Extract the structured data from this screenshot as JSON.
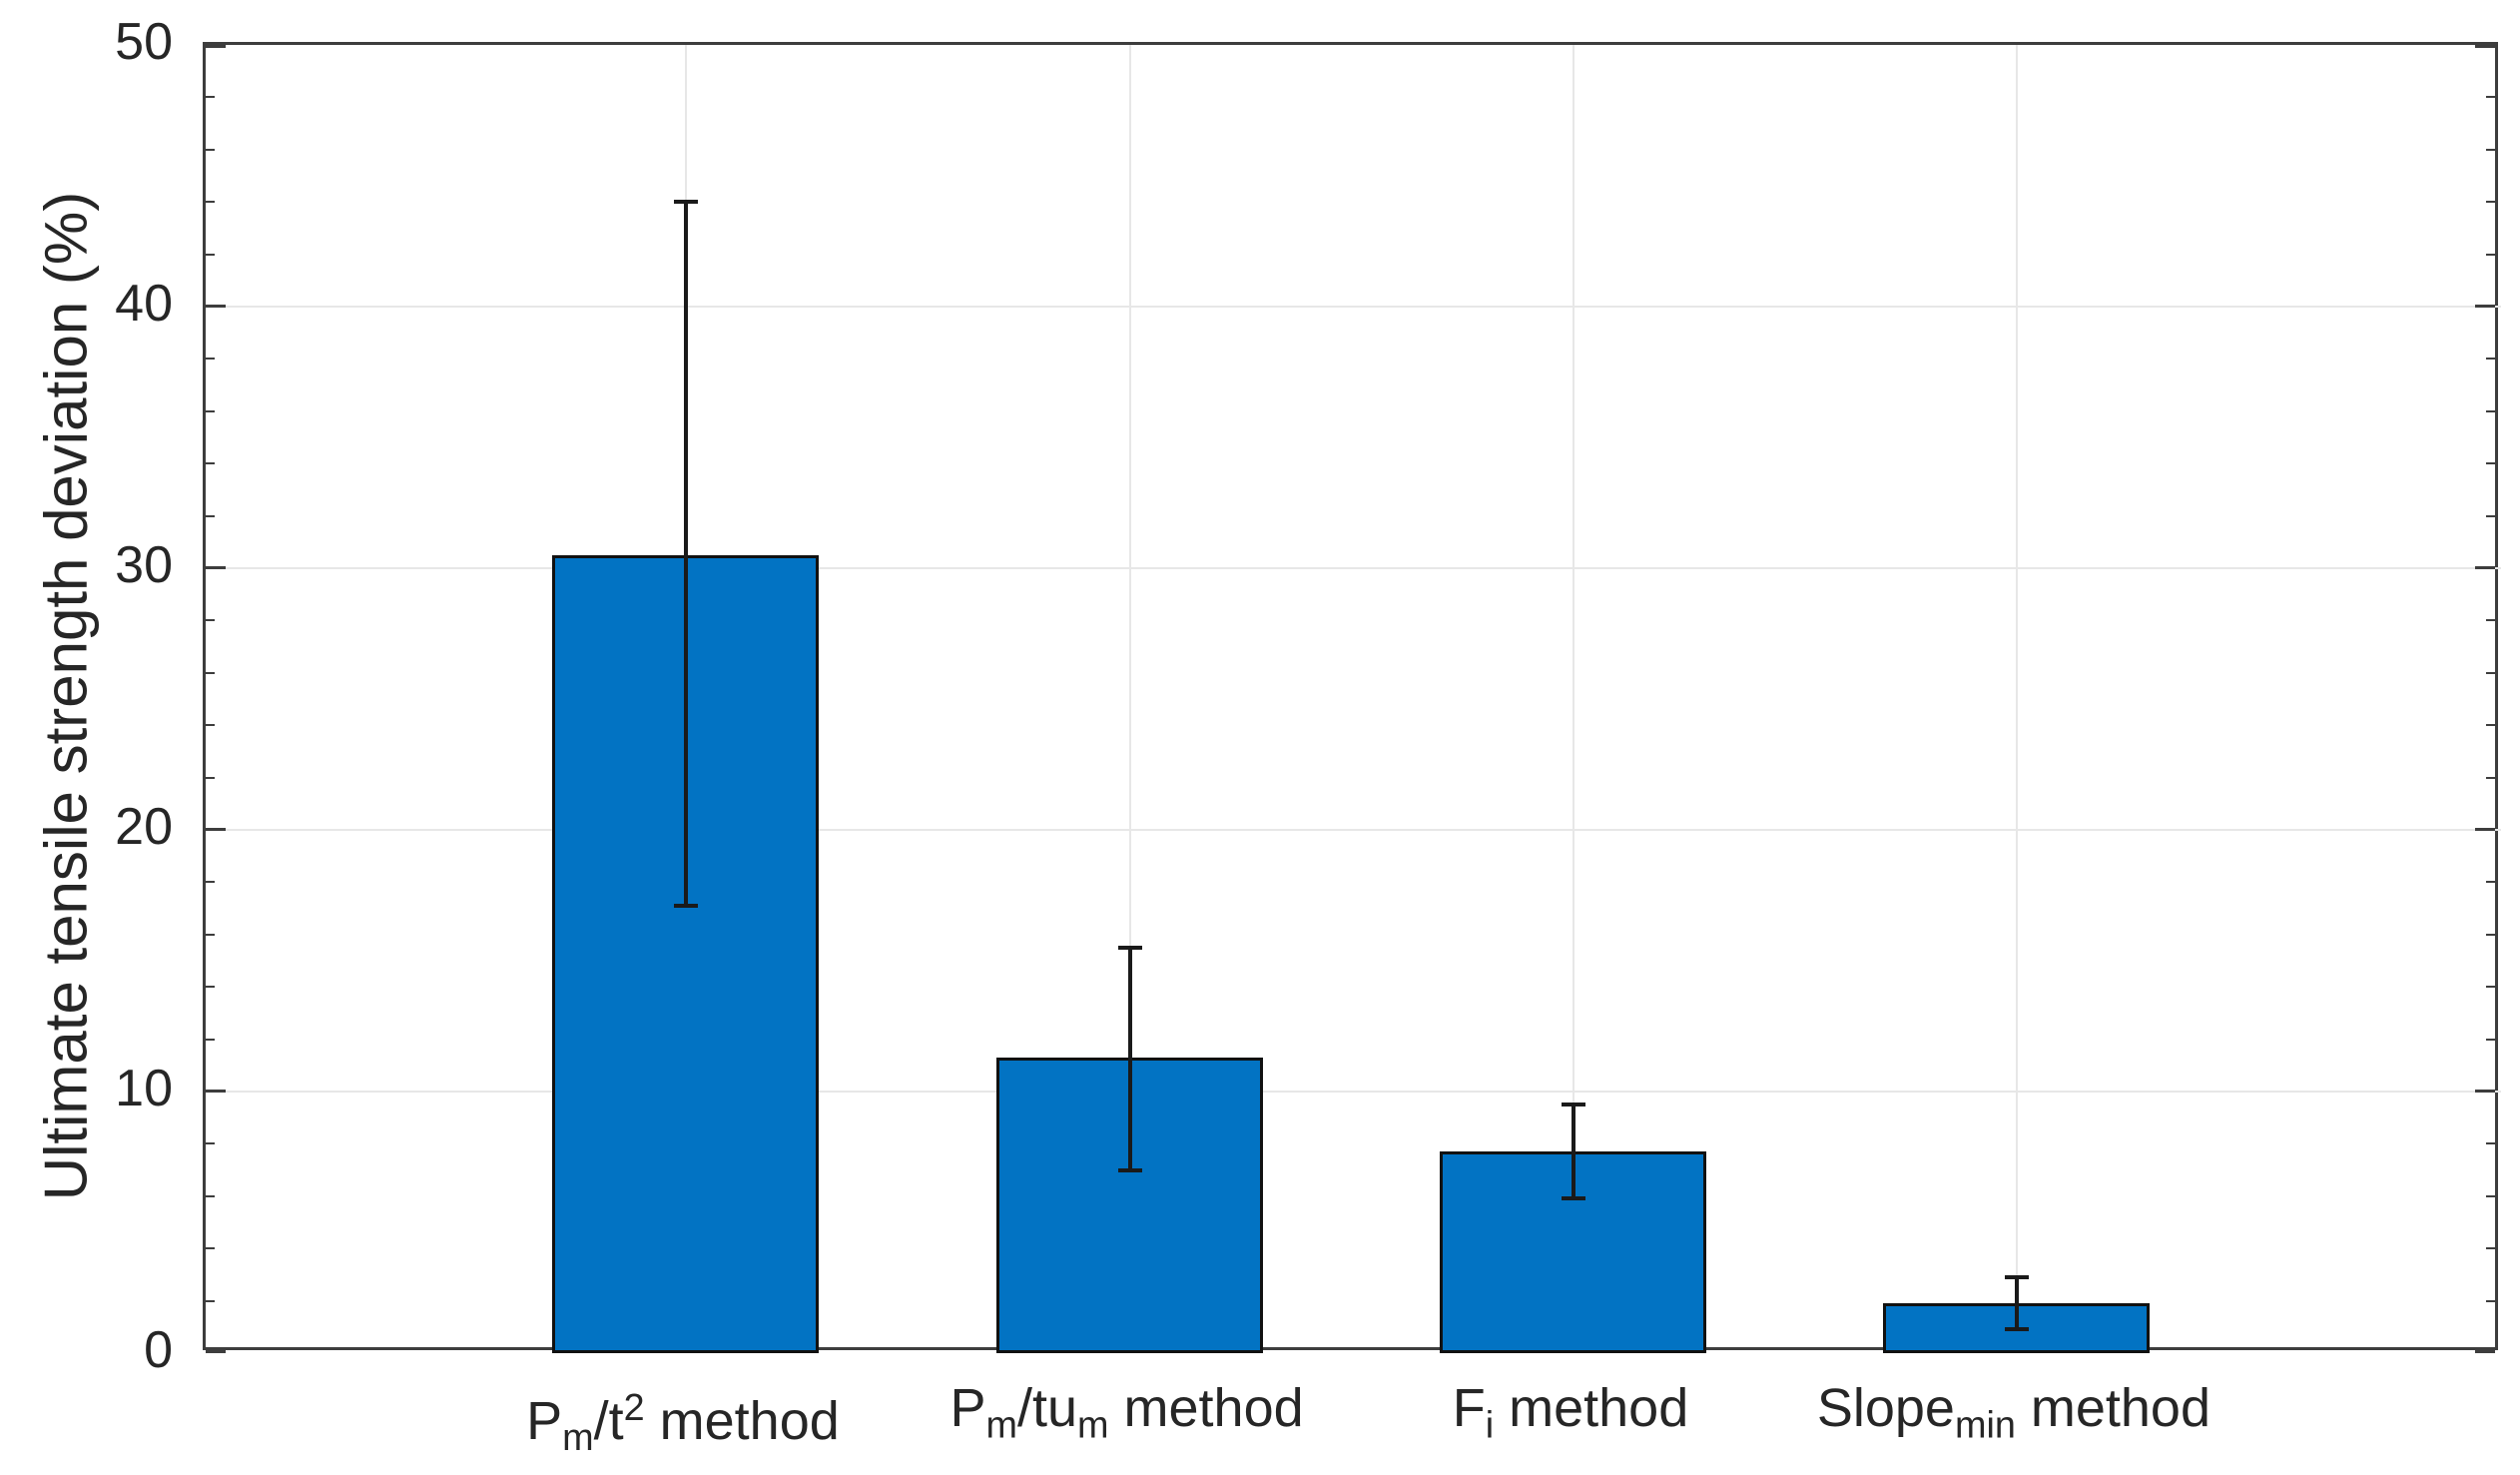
{
  "chart_data": {
    "type": "bar",
    "title": "",
    "xlabel": "",
    "ylabel": "Ultimate tensile strength deviation (%)",
    "ylim": [
      0,
      50
    ],
    "yticks": [
      0,
      10,
      20,
      30,
      40,
      50
    ],
    "y_tick_labels": [
      "0",
      "10",
      "20",
      "30",
      "40",
      "50"
    ],
    "y_minor_tick_step": 2,
    "grid": "on",
    "legend_position": "none",
    "categories": [
      "Pm/t2 method",
      "Pm/tum method",
      "Fi method",
      "Slopemin method"
    ],
    "categories_rich": [
      [
        {
          "t": "P"
        },
        {
          "t": "m",
          "s": "sub"
        },
        {
          "t": "/t"
        },
        {
          "t": "2",
          "s": "sup"
        },
        {
          "t": " method"
        }
      ],
      [
        {
          "t": "P"
        },
        {
          "t": "m",
          "s": "sub"
        },
        {
          "t": "/tu"
        },
        {
          "t": "m",
          "s": "sub"
        },
        {
          "t": " method"
        }
      ],
      [
        {
          "t": "F"
        },
        {
          "t": "i",
          "s": "sub"
        },
        {
          "t": " method"
        }
      ],
      [
        {
          "t": "Slope"
        },
        {
          "t": "min",
          "s": "sub"
        },
        {
          "t": " method"
        }
      ]
    ],
    "series": [
      {
        "name": "Ultimate tensile strength deviation",
        "values": [
          30.5,
          11.3,
          7.7,
          1.9
        ],
        "error_low": [
          17.1,
          7.0,
          5.9,
          0.9
        ],
        "error_high": [
          44.0,
          15.5,
          9.5,
          2.9
        ]
      }
    ],
    "colors": {
      "bar_fill": "#0273c3",
      "bar_edge": "#111111",
      "error_bar": "#1a1a1a",
      "axis": "#3d3d3d",
      "grid": "#e7e7e7",
      "text": "#262626"
    }
  }
}
